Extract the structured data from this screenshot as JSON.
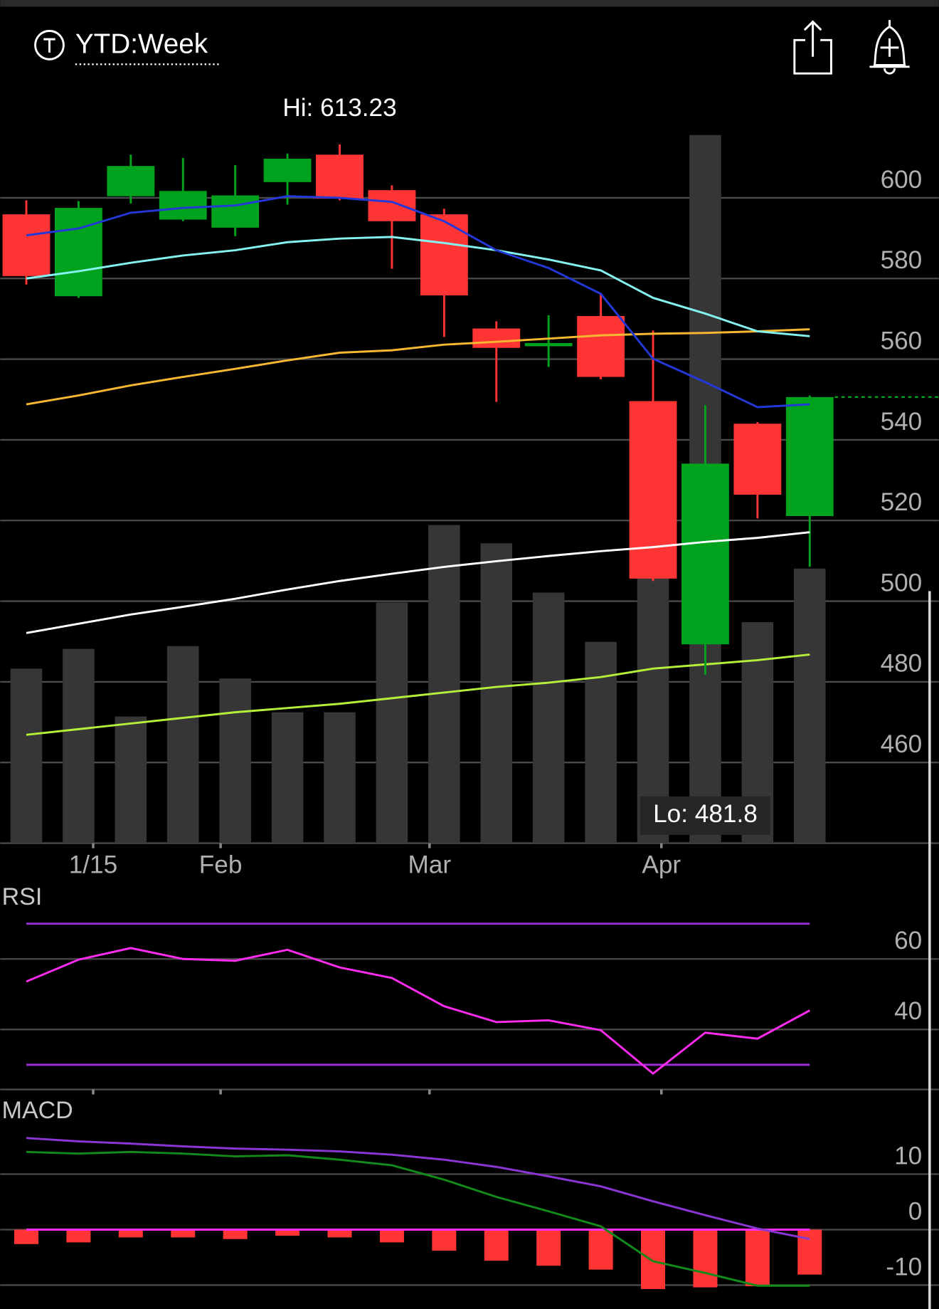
{
  "header": {
    "title": "YTD:Week"
  },
  "chart_data": [
    {
      "type": "candlestick",
      "categories": [
        null,
        null,
        null,
        null,
        null,
        null,
        null,
        null,
        null,
        null,
        null,
        null,
        null,
        null,
        null,
        null
      ],
      "xlim": [
        -0.5,
        15.5
      ],
      "xticks": [
        {
          "value": 1.28,
          "label": "1/15"
        },
        {
          "value": 3.72,
          "label": "Feb"
        },
        {
          "value": 7.72,
          "label": "Mar"
        },
        {
          "value": 12.16,
          "label": "Apr"
        }
      ],
      "open": [
        595.9,
        575.6,
        600.4,
        594.6,
        592.6,
        603.9,
        610.7,
        601.9,
        595.9,
        567.6,
        563.2,
        570.7,
        549.6,
        489.3,
        544.0,
        521.1
      ],
      "high": [
        599.4,
        599.2,
        610.7,
        609.9,
        608.1,
        611.0,
        613.23,
        603.1,
        597.3,
        569.4,
        570.9,
        576.4,
        567.1,
        548.6,
        544.4,
        551.0
      ],
      "low": [
        578.5,
        575.2,
        598.6,
        594.2,
        590.5,
        598.3,
        599.4,
        582.4,
        565.5,
        549.4,
        558.1,
        555.0,
        505.0,
        481.8,
        520.5,
        508.5
      ],
      "close": [
        580.6,
        597.5,
        607.9,
        601.7,
        600.6,
        609.7,
        599.8,
        594.2,
        575.8,
        562.8,
        564.0,
        555.6,
        505.6,
        534.1,
        526.4,
        550.6
      ],
      "up_color": "#00a21e",
      "down_color": "#ff3535",
      "lines": [
        {
          "color": "#ffffff",
          "values": [
            492.1,
            494.4,
            496.7,
            498.6,
            500.6,
            502.9,
            505.0,
            506.8,
            508.5,
            509.9,
            511.2,
            512.4,
            513.4,
            514.7,
            515.7,
            517.1
          ]
        },
        {
          "color": "#f6b830",
          "values": [
            548.8,
            551.0,
            553.5,
            555.6,
            557.6,
            559.7,
            561.6,
            562.2,
            563.6,
            564.3,
            565.1,
            565.9,
            566.3,
            566.5,
            566.9,
            567.4
          ]
        },
        {
          "color": "#84f3f0",
          "values": [
            580.0,
            581.8,
            583.9,
            585.7,
            587.0,
            589.0,
            589.9,
            590.3,
            588.8,
            587.0,
            584.7,
            582.0,
            575.2,
            571.3,
            566.9,
            565.7
          ]
        },
        {
          "color": "#2438d8",
          "values": [
            590.7,
            592.4,
            596.3,
            597.5,
            598.1,
            600.4,
            600.0,
            599.0,
            594.2,
            587.0,
            582.6,
            576.2,
            560.1,
            554.3,
            548.1,
            548.8
          ]
        }
      ],
      "ylim": [
        440,
        618
      ],
      "yticks": [
        460,
        480,
        500,
        520,
        540,
        560,
        580,
        600
      ],
      "grid": true,
      "annotations": [
        "Hi: 613.23",
        "Lo: 481.8"
      ]
    },
    {
      "type": "bar",
      "values": [
        124,
        138,
        90,
        140,
        117,
        93,
        93,
        171,
        226,
        213,
        178,
        143,
        310,
        503,
        157,
        195
      ],
      "color": "#363636",
      "average": {
        "color": "#b4f03a",
        "values": [
          77,
          81,
          85,
          89,
          93,
          96,
          99,
          103,
          107,
          111,
          114,
          118,
          124,
          127,
          130,
          134
        ]
      },
      "ylim": [
        0,
        510
      ]
    },
    {
      "type": "line",
      "title": "RSI",
      "series": [
        {
          "color": "#ff2cf0",
          "values": [
            53.6,
            59.8,
            63.1,
            60.0,
            59.5,
            62.6,
            57.6,
            54.6,
            46.6,
            42.1,
            42.6,
            39.8,
            27.5,
            39.1,
            37.4,
            45.4
          ]
        }
      ],
      "reference_lines": [
        {
          "value": 70,
          "color": "#9a2ed0"
        },
        {
          "value": 30,
          "color": "#9a2ed0"
        }
      ],
      "ylim": [
        23,
        81
      ],
      "yticks": [
        40,
        60
      ],
      "grid": true
    },
    {
      "type": "macd",
      "title": "MACD",
      "series": [
        {
          "color": "#138a1c",
          "values": [
            14.0,
            13.7,
            14.0,
            13.7,
            13.2,
            13.4,
            12.6,
            11.6,
            9.0,
            5.9,
            3.3,
            0.6,
            -5.7,
            -7.8,
            -10.1,
            -10.1
          ]
        },
        {
          "color": "#8a36d4",
          "values": [
            16.5,
            15.9,
            15.5,
            15.0,
            14.6,
            14.4,
            14.1,
            13.5,
            12.6,
            11.3,
            9.6,
            7.8,
            5.1,
            2.6,
            0.2,
            -1.7
          ]
        }
      ],
      "histogram": {
        "color": "#ff3535",
        "values": [
          -2.6,
          -2.3,
          -1.4,
          -1.4,
          -1.7,
          -1.1,
          -1.4,
          -2.3,
          -3.8,
          -5.6,
          -6.5,
          -7.2,
          -10.7,
          -10.4,
          -10.2,
          -8.1
        ]
      },
      "zero_line_color": "#ff2cf0",
      "ylim": [
        -14.3,
        23.3
      ],
      "yticks": [
        -10,
        0,
        10
      ],
      "grid": true
    }
  ]
}
